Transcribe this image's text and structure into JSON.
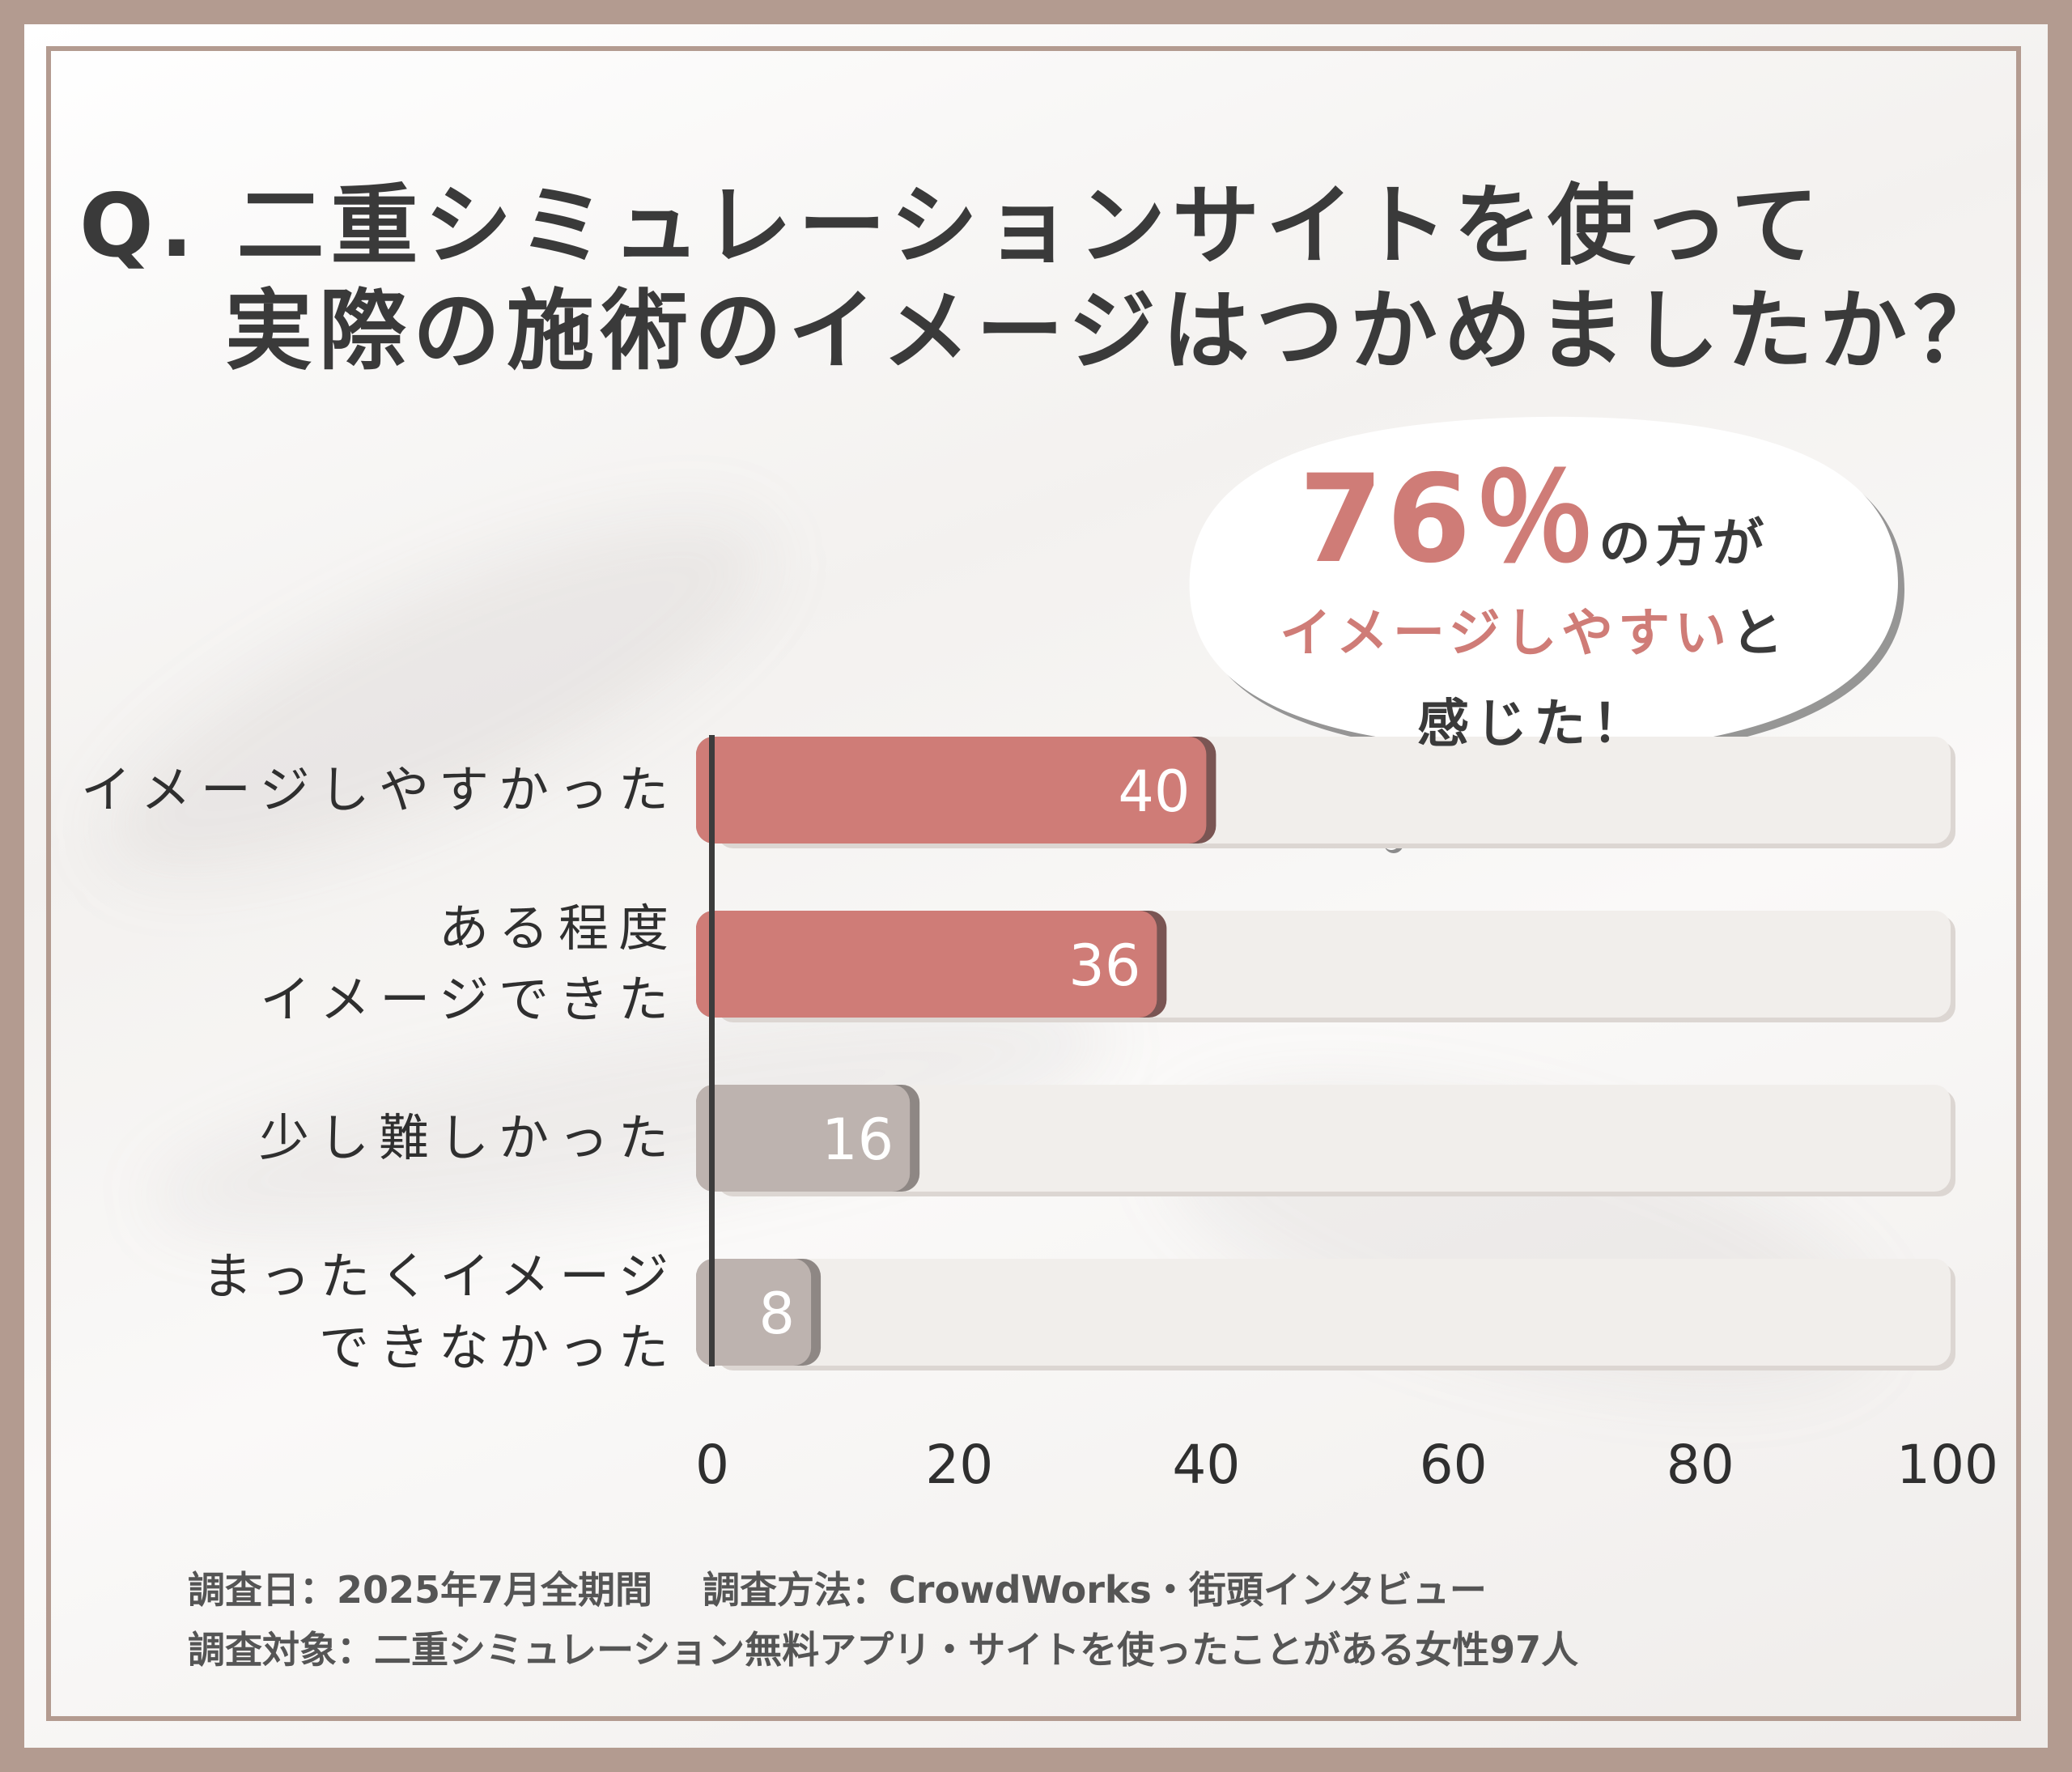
{
  "title": {
    "line1": "Q. 二重シミュレーションサイトを使って",
    "line2": "実際の施術のイメージはつかめましたか？"
  },
  "callout": {
    "percent": "76％",
    "suffix": "の方が",
    "highlight": "イメージしやすい",
    "line2_suffix": "と",
    "line3": "感じた！"
  },
  "footer": {
    "line1": "調査日：2025年7月全期間　 調査方法：CrowdWorks・街頭インタビュー",
    "line2": "調査対象：二重シミュレーション無料アプリ・サイトを使ったことがある女性97人"
  },
  "colors": {
    "highlight": "#cf7c77",
    "gray_bar": "#bdb3af",
    "track": "#f1eeeb",
    "frame": "#b39b90"
  },
  "chart_data": {
    "type": "bar",
    "orientation": "horizontal",
    "categories": [
      "イメージしやすかった",
      "ある程度\nイメージできた",
      "少し難しかった",
      "まったくイメージ\nできなかった"
    ],
    "values": [
      40,
      36,
      16,
      8
    ],
    "highlighted": [
      true,
      true,
      false,
      false
    ],
    "xlim": [
      0,
      100
    ],
    "xticks": [
      0,
      20,
      40,
      60,
      80,
      100
    ],
    "title": "Q. 二重シミュレーションサイトを使って実際の施術のイメージはつかめましたか？",
    "xlabel": "",
    "ylabel": ""
  }
}
